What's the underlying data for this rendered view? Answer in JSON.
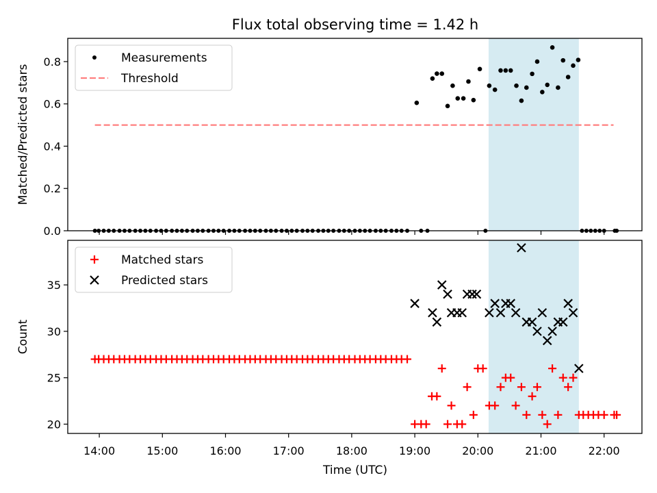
{
  "figure": {
    "title": "Flux total observing time = 1.42 h",
    "xlabel": "Time (UTC)",
    "xticks": [
      {
        "value": 14,
        "label": "14:00"
      },
      {
        "value": 15,
        "label": "15:00"
      },
      {
        "value": 16,
        "label": "16:00"
      },
      {
        "value": 17,
        "label": "17:00"
      },
      {
        "value": 18,
        "label": "18:00"
      },
      {
        "value": 19,
        "label": "19:00"
      },
      {
        "value": 20,
        "label": "20:00"
      },
      {
        "value": 21,
        "label": "21:00"
      },
      {
        "value": 22,
        "label": "22:00"
      }
    ],
    "xlim": [
      13.5,
      22.6
    ],
    "shaded_span": {
      "from": 20.17,
      "to": 21.6,
      "color": "#add8e6"
    }
  },
  "chart_data": [
    {
      "type": "scatter",
      "ylabel": "Matched/Predicted stars",
      "ylim": [
        0,
        0.91
      ],
      "yticks": [
        "0.0",
        "0.2",
        "0.4",
        "0.6",
        "0.8"
      ],
      "ytick_values": [
        0,
        0.2,
        0.4,
        0.6,
        0.8
      ],
      "legend": {
        "placement": "top-left",
        "entries": [
          {
            "label": "Measurements",
            "marker": "dot",
            "color": "#000000"
          },
          {
            "label": "Threshold",
            "marker": "dashed-line",
            "color": "#ff7f7f"
          }
        ]
      },
      "threshold": {
        "value": 0.5,
        "x_from": 13.93,
        "x_to": 22.15,
        "color": "#ff7f7f"
      },
      "zero_points_x": [
        13.93,
        13.99,
        14.07,
        14.15,
        14.23,
        14.32,
        14.4,
        14.48,
        14.57,
        14.65,
        14.73,
        14.81,
        14.9,
        14.98,
        15.06,
        15.15,
        15.23,
        15.31,
        15.39,
        15.48,
        15.56,
        15.64,
        15.73,
        15.81,
        15.89,
        15.97,
        16.06,
        16.14,
        16.22,
        16.31,
        16.39,
        16.47,
        16.55,
        16.64,
        16.72,
        16.8,
        16.89,
        16.97,
        17.05,
        17.13,
        17.22,
        17.3,
        17.38,
        17.47,
        17.55,
        17.63,
        17.71,
        17.8,
        17.88,
        17.96,
        18.05,
        18.13,
        18.21,
        18.29,
        18.38,
        18.46,
        18.54,
        18.63,
        18.71,
        18.79,
        18.88,
        19.1,
        19.2,
        20.12,
        21.65,
        21.72,
        21.79,
        21.86,
        21.93,
        22.0,
        22.17,
        22.2
      ],
      "points": [
        {
          "x": 19.03,
          "y": 0.605
        },
        {
          "x": 19.28,
          "y": 0.72
        },
        {
          "x": 19.35,
          "y": 0.743
        },
        {
          "x": 19.43,
          "y": 0.743
        },
        {
          "x": 19.52,
          "y": 0.59
        },
        {
          "x": 19.6,
          "y": 0.686
        },
        {
          "x": 19.68,
          "y": 0.626
        },
        {
          "x": 19.77,
          "y": 0.626
        },
        {
          "x": 19.85,
          "y": 0.706
        },
        {
          "x": 19.93,
          "y": 0.618
        },
        {
          "x": 20.03,
          "y": 0.765
        },
        {
          "x": 20.18,
          "y": 0.686
        },
        {
          "x": 20.27,
          "y": 0.667
        },
        {
          "x": 20.36,
          "y": 0.758
        },
        {
          "x": 20.44,
          "y": 0.758
        },
        {
          "x": 20.52,
          "y": 0.758
        },
        {
          "x": 20.61,
          "y": 0.686
        },
        {
          "x": 20.69,
          "y": 0.615
        },
        {
          "x": 20.77,
          "y": 0.677
        },
        {
          "x": 20.86,
          "y": 0.742
        },
        {
          "x": 20.94,
          "y": 0.8
        },
        {
          "x": 21.02,
          "y": 0.656
        },
        {
          "x": 21.1,
          "y": 0.69
        },
        {
          "x": 21.18,
          "y": 0.867
        },
        {
          "x": 21.27,
          "y": 0.677
        },
        {
          "x": 21.35,
          "y": 0.806
        },
        {
          "x": 21.43,
          "y": 0.727
        },
        {
          "x": 21.51,
          "y": 0.781
        },
        {
          "x": 21.59,
          "y": 0.808
        }
      ]
    },
    {
      "type": "scatter",
      "ylabel": "Count",
      "ylim": [
        19.0,
        39.8
      ],
      "yticks": [
        "20",
        "25",
        "30",
        "35"
      ],
      "ytick_values": [
        20,
        25,
        30,
        35
      ],
      "legend": {
        "placement": "top-left",
        "entries": [
          {
            "label": "Matched stars",
            "marker": "plus",
            "color": "#ff0000"
          },
          {
            "label": "Predicted stars",
            "marker": "x",
            "color": "#000000"
          }
        ]
      },
      "series": [
        {
          "name": "Matched stars",
          "marker": "plus",
          "color": "#ff0000",
          "constant_run": {
            "y": 27,
            "x": [
              13.93,
              13.99,
              14.07,
              14.15,
              14.23,
              14.32,
              14.4,
              14.48,
              14.57,
              14.65,
              14.73,
              14.81,
              14.9,
              14.98,
              15.06,
              15.15,
              15.23,
              15.31,
              15.39,
              15.48,
              15.56,
              15.64,
              15.73,
              15.81,
              15.89,
              15.97,
              16.06,
              16.14,
              16.22,
              16.31,
              16.39,
              16.47,
              16.55,
              16.64,
              16.72,
              16.8,
              16.89,
              16.97,
              17.05,
              17.13,
              17.22,
              17.3,
              17.38,
              17.47,
              17.55,
              17.63,
              17.71,
              17.8,
              17.88,
              17.96,
              18.05,
              18.13,
              18.21,
              18.29,
              18.38,
              18.46,
              18.54,
              18.63,
              18.71,
              18.79,
              18.88
            ]
          },
          "points": [
            {
              "x": 19.0,
              "y": 20
            },
            {
              "x": 19.1,
              "y": 20
            },
            {
              "x": 19.18,
              "y": 20
            },
            {
              "x": 19.27,
              "y": 23
            },
            {
              "x": 19.35,
              "y": 23
            },
            {
              "x": 19.43,
              "y": 26
            },
            {
              "x": 19.52,
              "y": 20
            },
            {
              "x": 19.58,
              "y": 22
            },
            {
              "x": 19.67,
              "y": 20
            },
            {
              "x": 19.75,
              "y": 20
            },
            {
              "x": 19.83,
              "y": 24
            },
            {
              "x": 19.93,
              "y": 21
            },
            {
              "x": 20.0,
              "y": 26
            },
            {
              "x": 20.08,
              "y": 26
            },
            {
              "x": 20.18,
              "y": 22
            },
            {
              "x": 20.27,
              "y": 22
            },
            {
              "x": 20.36,
              "y": 24
            },
            {
              "x": 20.44,
              "y": 25
            },
            {
              "x": 20.52,
              "y": 25
            },
            {
              "x": 20.6,
              "y": 22
            },
            {
              "x": 20.69,
              "y": 24
            },
            {
              "x": 20.77,
              "y": 21
            },
            {
              "x": 20.86,
              "y": 23
            },
            {
              "x": 20.94,
              "y": 24
            },
            {
              "x": 21.02,
              "y": 21
            },
            {
              "x": 21.1,
              "y": 20
            },
            {
              "x": 21.18,
              "y": 26
            },
            {
              "x": 21.27,
              "y": 21
            },
            {
              "x": 21.35,
              "y": 25
            },
            {
              "x": 21.43,
              "y": 24
            },
            {
              "x": 21.51,
              "y": 25
            },
            {
              "x": 21.6,
              "y": 21
            },
            {
              "x": 21.67,
              "y": 21
            },
            {
              "x": 21.75,
              "y": 21
            },
            {
              "x": 21.83,
              "y": 21
            },
            {
              "x": 21.91,
              "y": 21
            },
            {
              "x": 22.0,
              "y": 21
            },
            {
              "x": 22.16,
              "y": 21
            },
            {
              "x": 22.2,
              "y": 21
            }
          ]
        },
        {
          "name": "Predicted stars",
          "marker": "x",
          "color": "#000000",
          "points": [
            {
              "x": 19.0,
              "y": 33
            },
            {
              "x": 19.28,
              "y": 32
            },
            {
              "x": 19.35,
              "y": 31
            },
            {
              "x": 19.43,
              "y": 35
            },
            {
              "x": 19.52,
              "y": 34
            },
            {
              "x": 19.58,
              "y": 32
            },
            {
              "x": 19.67,
              "y": 32
            },
            {
              "x": 19.75,
              "y": 32
            },
            {
              "x": 19.83,
              "y": 34
            },
            {
              "x": 19.91,
              "y": 34
            },
            {
              "x": 19.98,
              "y": 34
            },
            {
              "x": 20.18,
              "y": 32
            },
            {
              "x": 20.27,
              "y": 33
            },
            {
              "x": 20.36,
              "y": 32
            },
            {
              "x": 20.44,
              "y": 33
            },
            {
              "x": 20.52,
              "y": 33
            },
            {
              "x": 20.6,
              "y": 32
            },
            {
              "x": 20.69,
              "y": 39
            },
            {
              "x": 20.77,
              "y": 31
            },
            {
              "x": 20.86,
              "y": 31
            },
            {
              "x": 20.94,
              "y": 30
            },
            {
              "x": 21.02,
              "y": 32
            },
            {
              "x": 21.1,
              "y": 29
            },
            {
              "x": 21.18,
              "y": 30
            },
            {
              "x": 21.27,
              "y": 31
            },
            {
              "x": 21.35,
              "y": 31
            },
            {
              "x": 21.43,
              "y": 33
            },
            {
              "x": 21.51,
              "y": 32
            },
            {
              "x": 21.6,
              "y": 26
            }
          ]
        }
      ]
    }
  ]
}
